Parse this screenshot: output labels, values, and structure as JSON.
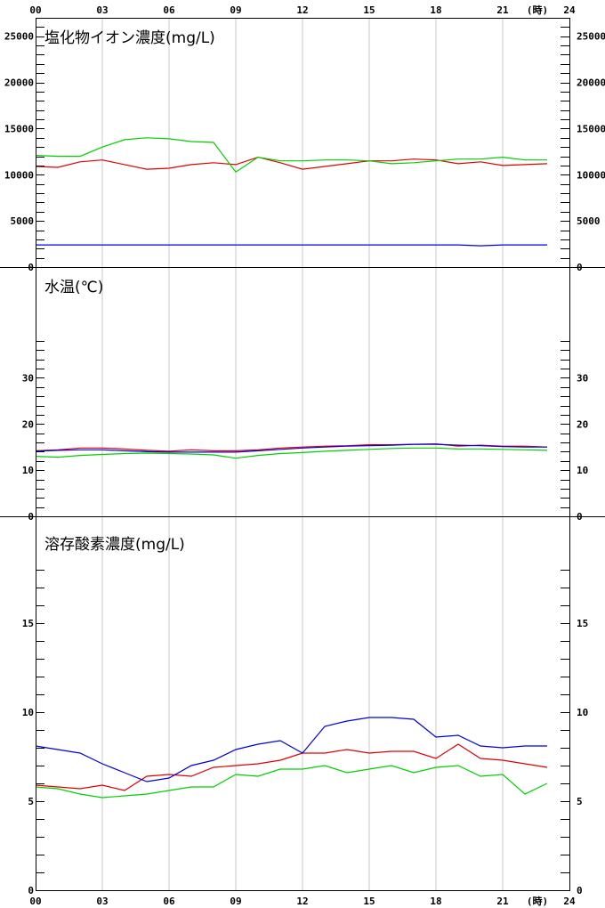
{
  "x_axis": {
    "top_labels": [
      "00",
      "03",
      "06",
      "09",
      "12",
      "15",
      "18",
      "21",
      "24"
    ],
    "bottom_labels": [
      "00",
      "03",
      "06",
      "09",
      "12",
      "15",
      "18",
      "21",
      "24"
    ],
    "unit": "(時)"
  },
  "colors": {
    "red": "#e00000",
    "green": "#00d000",
    "blue": "#0000e0",
    "grid": "#c8c8c8",
    "axis": "#000000"
  },
  "chart_data": [
    {
      "type": "line",
      "title": "塩化物イオン濃度(mg/L)",
      "ylim": [
        0,
        27000
      ],
      "y_tick_labels": [
        {
          "v": 0,
          "t": "0"
        },
        {
          "v": 5000,
          "t": "5000"
        },
        {
          "v": 10000,
          "t": "10000"
        },
        {
          "v": 15000,
          "t": "15000"
        },
        {
          "v": 20000,
          "t": "20000"
        },
        {
          "v": 25000,
          "t": "25000"
        }
      ],
      "minor_step": 1000,
      "x": [
        0,
        1,
        2,
        3,
        4,
        5,
        6,
        7,
        8,
        9,
        10,
        11,
        12,
        13,
        14,
        15,
        16,
        17,
        18,
        19,
        20,
        21,
        22,
        23
      ],
      "series": [
        {
          "color": "red",
          "values": [
            10900,
            10800,
            11400,
            11600,
            11100,
            10600,
            10700,
            11100,
            11300,
            11100,
            11900,
            11300,
            10600,
            10900,
            11200,
            11500,
            11500,
            11700,
            11600,
            11200,
            11400,
            11000,
            11100,
            11200
          ]
        },
        {
          "color": "green",
          "values": [
            12100,
            12000,
            12000,
            13000,
            13800,
            14000,
            13900,
            13600,
            13500,
            10300,
            11900,
            11500,
            11500,
            11600,
            11600,
            11500,
            11200,
            11300,
            11500,
            11700,
            11700,
            11900,
            11600,
            11600
          ]
        },
        {
          "color": "blue",
          "values": [
            2400,
            2400,
            2400,
            2400,
            2400,
            2400,
            2400,
            2400,
            2400,
            2400,
            2400,
            2400,
            2400,
            2400,
            2400,
            2400,
            2400,
            2400,
            2400,
            2400,
            2300,
            2400,
            2400,
            2400
          ]
        }
      ]
    },
    {
      "type": "line",
      "title": "水温(℃)",
      "ylim": [
        0,
        54
      ],
      "y_tick_labels": [
        {
          "v": 0,
          "t": "0"
        },
        {
          "v": 10,
          "t": "10"
        },
        {
          "v": 20,
          "t": "20"
        },
        {
          "v": 30,
          "t": "30"
        }
      ],
      "minor_step": 2,
      "minor_max": 38,
      "x": [
        0,
        1,
        2,
        3,
        4,
        5,
        6,
        7,
        8,
        9,
        10,
        11,
        12,
        13,
        14,
        15,
        16,
        17,
        18,
        19,
        20,
        21,
        22,
        23
      ],
      "series": [
        {
          "color": "red",
          "values": [
            14.2,
            14.4,
            14.8,
            14.8,
            14.6,
            14.3,
            14.1,
            14.4,
            14.2,
            14.2,
            14.4,
            14.8,
            15.0,
            15.2,
            15.3,
            15.5,
            15.5,
            15.6,
            15.7,
            15.2,
            15.4,
            15.2,
            15.2,
            15.0
          ]
        },
        {
          "color": "green",
          "values": [
            13.0,
            12.8,
            13.2,
            13.4,
            13.6,
            13.7,
            13.6,
            13.5,
            13.3,
            12.6,
            13.2,
            13.6,
            13.8,
            14.1,
            14.3,
            14.5,
            14.7,
            14.8,
            14.8,
            14.6,
            14.6,
            14.5,
            14.4,
            14.3
          ]
        },
        {
          "color": "blue",
          "values": [
            14.1,
            14.3,
            14.4,
            14.4,
            14.2,
            14.0,
            13.9,
            13.9,
            13.9,
            13.9,
            14.2,
            14.5,
            14.8,
            15.0,
            15.2,
            15.3,
            15.4,
            15.6,
            15.6,
            15.4,
            15.3,
            15.1,
            15.0,
            15.0
          ]
        }
      ]
    },
    {
      "type": "line",
      "title": "溶存酸素濃度(mg/L)",
      "ylim": [
        0,
        21
      ],
      "y_tick_labels": [
        {
          "v": 0,
          "t": "0"
        },
        {
          "v": 5,
          "t": "5"
        },
        {
          "v": 10,
          "t": "10"
        },
        {
          "v": 15,
          "t": "15"
        }
      ],
      "minor_step": 1,
      "minor_max": 18,
      "x": [
        0,
        1,
        2,
        3,
        4,
        5,
        6,
        7,
        8,
        9,
        10,
        11,
        12,
        13,
        14,
        15,
        16,
        17,
        18,
        19,
        20,
        21,
        22,
        23
      ],
      "series": [
        {
          "color": "red",
          "values": [
            5.9,
            5.8,
            5.7,
            5.9,
            5.6,
            6.4,
            6.5,
            6.4,
            6.9,
            7.0,
            7.1,
            7.3,
            7.7,
            7.7,
            7.9,
            7.7,
            7.8,
            7.8,
            7.4,
            8.2,
            7.4,
            7.3,
            7.1,
            6.9
          ]
        },
        {
          "color": "green",
          "values": [
            5.8,
            5.7,
            5.4,
            5.2,
            5.3,
            5.4,
            5.6,
            5.8,
            5.8,
            6.5,
            6.4,
            6.8,
            6.8,
            7.0,
            6.6,
            6.8,
            7.0,
            6.6,
            6.9,
            7.0,
            6.4,
            6.5,
            5.4,
            6.0
          ]
        },
        {
          "color": "blue",
          "values": [
            8.1,
            7.9,
            7.7,
            7.1,
            6.6,
            6.1,
            6.3,
            7.0,
            7.3,
            7.9,
            8.2,
            8.4,
            7.7,
            9.2,
            9.5,
            9.7,
            9.7,
            9.6,
            8.6,
            8.7,
            8.1,
            8.0,
            8.1,
            8.1
          ]
        }
      ]
    }
  ]
}
